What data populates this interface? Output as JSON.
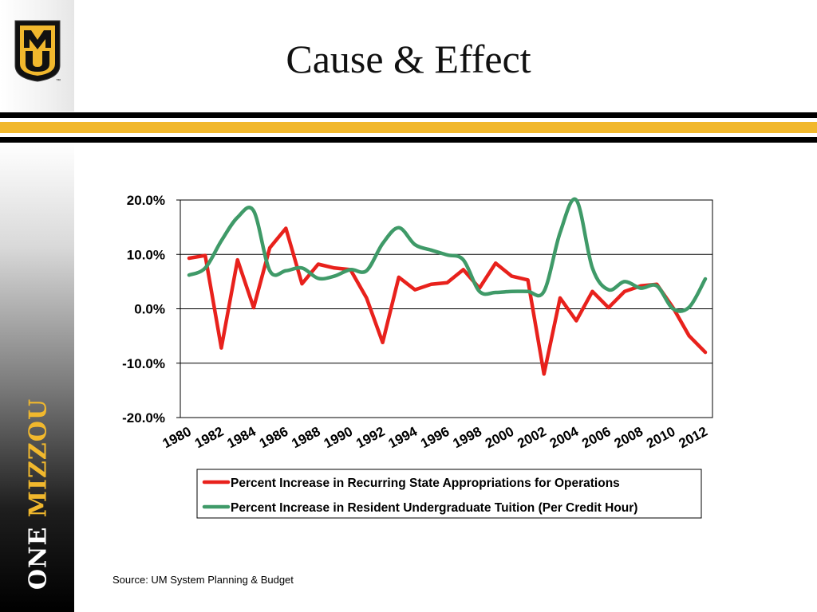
{
  "slide": {
    "title": "Cause & Effect",
    "brand_word1": "ONE",
    "brand_word2": "MIZZOU",
    "logo_text": "MU",
    "logo_tm": "™",
    "source": "Source: UM System Planning & Budget"
  },
  "colors": {
    "gold": "#F1B82D",
    "black": "#000000",
    "series_red": "#E8211C",
    "series_green": "#3F9A68"
  },
  "chart_data": {
    "type": "line",
    "title": "",
    "xlabel": "",
    "ylabel": "",
    "ylim": [
      -20,
      20
    ],
    "yticks": [
      "20.0%",
      "10.0%",
      "0.0%",
      "-10.0%",
      "-20.0%"
    ],
    "ytick_values": [
      20,
      10,
      0,
      -10,
      -20
    ],
    "xtick_labels": [
      "1980",
      "1982",
      "1984",
      "1986",
      "1988",
      "1990",
      "1992",
      "1994",
      "1996",
      "1998",
      "2000",
      "2002",
      "2004",
      "2006",
      "2008",
      "2010",
      "2012"
    ],
    "x": [
      1980,
      1981,
      1982,
      1983,
      1984,
      1985,
      1986,
      1987,
      1988,
      1989,
      1990,
      1991,
      1992,
      1993,
      1994,
      1995,
      1996,
      1997,
      1998,
      1999,
      2000,
      2001,
      2002,
      2003,
      2004,
      2005,
      2006,
      2007,
      2008,
      2009,
      2010,
      2011,
      2012
    ],
    "grid": "horizontal",
    "legend_position": "bottom",
    "series": [
      {
        "name": "Percent Increase in Recurring State Appropriations for Operations",
        "color": "#E8211C",
        "values": [
          9.3,
          9.8,
          -7.2,
          9.0,
          0.2,
          11.2,
          14.8,
          4.6,
          8.2,
          7.5,
          7.2,
          2.0,
          -6.2,
          5.8,
          3.5,
          4.5,
          4.8,
          7.2,
          3.8,
          8.4,
          6.0,
          5.3,
          -12.0,
          2.0,
          -2.2,
          3.2,
          0.2,
          3.2,
          4.2,
          4.5,
          0.2,
          -5.0,
          -8.0
        ]
      },
      {
        "name": "Percent Increase in Resident Undergraduate Tuition (Per Credit Hour)",
        "color": "#3F9A68",
        "values": [
          6.2,
          7.5,
          12.5,
          16.8,
          18.0,
          7.0,
          7.0,
          7.5,
          5.6,
          6.0,
          7.2,
          7.0,
          12.0,
          14.9,
          11.8,
          10.8,
          9.9,
          9.0,
          3.2,
          3.0,
          3.2,
          3.2,
          3.2,
          14.0,
          20.0,
          7.5,
          3.5,
          5.0,
          3.8,
          4.2,
          0.0,
          0.3,
          5.5
        ]
      }
    ]
  }
}
